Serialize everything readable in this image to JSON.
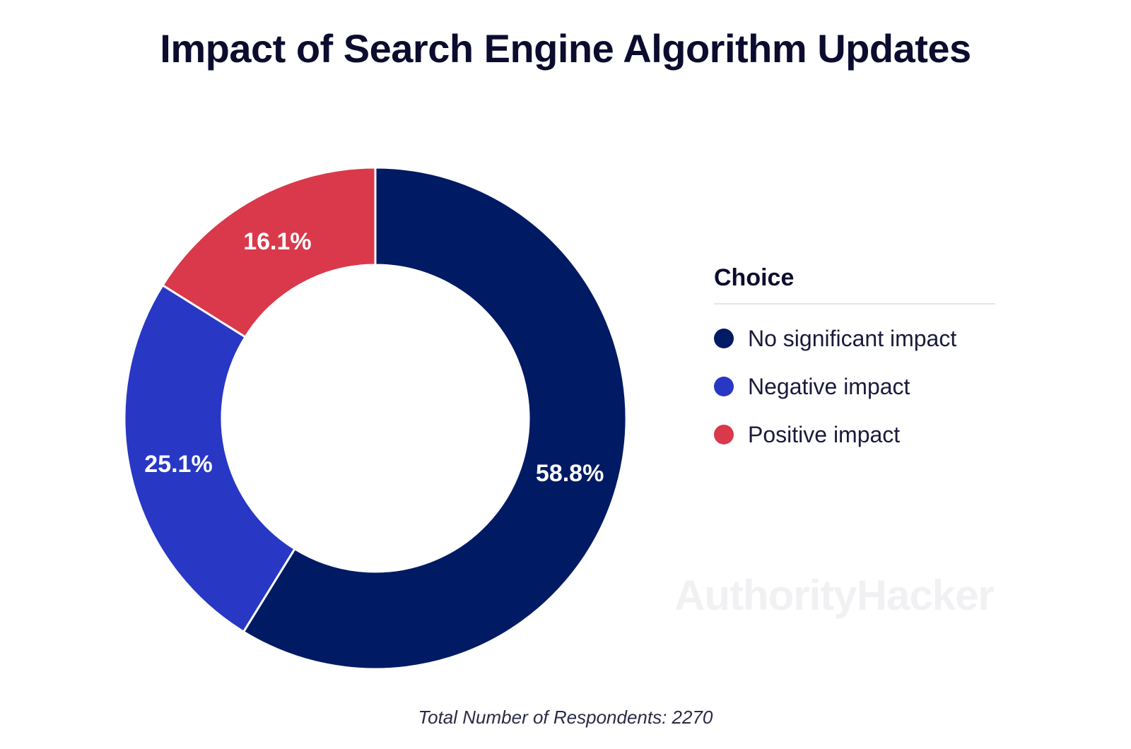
{
  "chart_data": {
    "type": "pie",
    "title": "Impact of Search Engine Algorithm Updates",
    "legend_title": "Choice",
    "legend_position": "right",
    "donut": true,
    "slices": [
      {
        "label": "No significant impact",
        "value": 58.8,
        "display": "58.8%",
        "color": "#001a63"
      },
      {
        "label": "Negative impact",
        "value": 25.1,
        "display": "25.1%",
        "color": "#2837c4"
      },
      {
        "label": "Positive impact",
        "value": 16.1,
        "display": "16.1%",
        "color": "#d9394b"
      }
    ],
    "footnote": "Total Number of Respondents: 2270"
  },
  "watermark": "AuthorityHacker"
}
